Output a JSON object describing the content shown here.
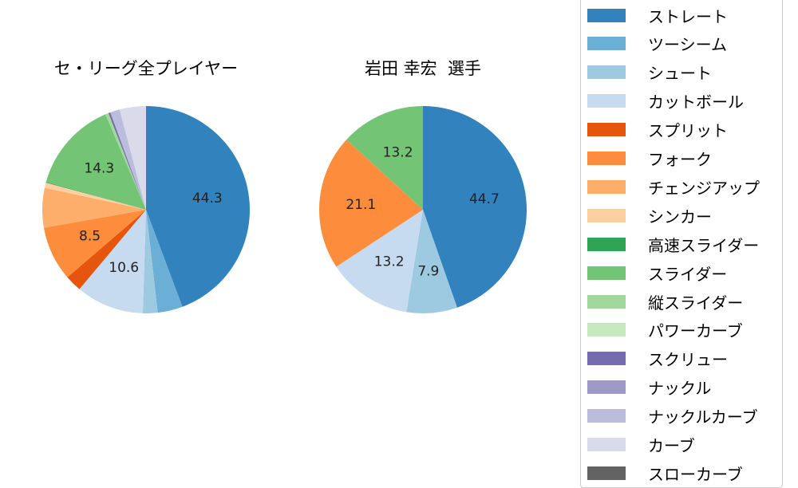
{
  "chart_data": [
    {
      "type": "pie",
      "title": "セ・リーグ全プレイヤー",
      "categories": [
        "ストレート",
        "ツーシーム",
        "シュート",
        "カットボール",
        "スプリット",
        "フォーク",
        "チェンジアップ",
        "シンカー",
        "高速スライダー",
        "スライダー",
        "縦スライダー",
        "パワーカーブ",
        "スクリュー",
        "ナックル",
        "ナックルカーブ",
        "カーブ",
        "スローカーブ"
      ],
      "values": [
        44.3,
        3.9,
        2.3,
        10.6,
        2.6,
        8.5,
        6.2,
        0.8,
        0.1,
        14.3,
        0.5,
        0.0,
        0.3,
        0.0,
        1.5,
        4.1,
        0.0
      ],
      "labels_shown": [
        "44.3",
        "10.6",
        "8.5",
        "14.3"
      ],
      "startangle": 90,
      "direction": "clockwise"
    },
    {
      "type": "pie",
      "title": "岩田 幸宏  選手",
      "categories": [
        "ストレート",
        "シュート",
        "カットボール",
        "フォーク",
        "スライダー"
      ],
      "values": [
        44.7,
        7.9,
        13.2,
        21.1,
        13.2
      ],
      "labels_shown": [
        "44.7",
        "7.9",
        "13.2",
        "21.1",
        "13.2"
      ],
      "startangle": 90,
      "direction": "clockwise"
    }
  ],
  "titles": {
    "left": "セ・リーグ全プレイヤー",
    "right": "岩田 幸宏  選手"
  },
  "legend": [
    {
      "label": "ストレート",
      "color": "#3182bd"
    },
    {
      "label": "ツーシーム",
      "color": "#6baed6"
    },
    {
      "label": "シュート",
      "color": "#9ecae1"
    },
    {
      "label": "カットボール",
      "color": "#c6dbef"
    },
    {
      "label": "スプリット",
      "color": "#e6550d"
    },
    {
      "label": "フォーク",
      "color": "#fd8d3c"
    },
    {
      "label": "チェンジアップ",
      "color": "#fdae6b"
    },
    {
      "label": "シンカー",
      "color": "#fdd0a2"
    },
    {
      "label": "高速スライダー",
      "color": "#31a354"
    },
    {
      "label": "スライダー",
      "color": "#74c476"
    },
    {
      "label": "縦スライダー",
      "color": "#a1d99b"
    },
    {
      "label": "パワーカーブ",
      "color": "#c7e9c0"
    },
    {
      "label": "スクリュー",
      "color": "#756bb1"
    },
    {
      "label": "ナックル",
      "color": "#9e9ac8"
    },
    {
      "label": "ナックルカーブ",
      "color": "#bcbddc"
    },
    {
      "label": "カーブ",
      "color": "#dadaeb"
    },
    {
      "label": "スローカーブ",
      "color": "#636363"
    }
  ]
}
